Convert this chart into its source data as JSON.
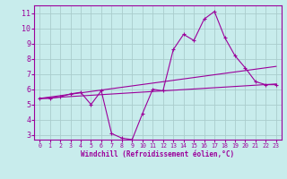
{
  "title": "",
  "xlabel": "Windchill (Refroidissement éolien,°C)",
  "ylabel": "",
  "bg_color": "#c8ecec",
  "line_color": "#9b009b",
  "grid_color": "#aacccc",
  "xlim": [
    -0.5,
    23.5
  ],
  "ylim": [
    2.7,
    11.5
  ],
  "yticks": [
    3,
    4,
    5,
    6,
    7,
    8,
    9,
    10,
    11
  ],
  "xticks": [
    0,
    1,
    2,
    3,
    4,
    5,
    6,
    7,
    8,
    9,
    10,
    11,
    12,
    13,
    14,
    15,
    16,
    17,
    18,
    19,
    20,
    21,
    22,
    23
  ],
  "series1_x": [
    0,
    1,
    2,
    3,
    4,
    5,
    6,
    7,
    8,
    9,
    10,
    11,
    12,
    13,
    14,
    15,
    16,
    17,
    18,
    19,
    20,
    21,
    22,
    23
  ],
  "series1_y": [
    5.4,
    5.4,
    5.5,
    5.7,
    5.8,
    5.0,
    5.9,
    3.1,
    2.8,
    2.7,
    4.4,
    6.0,
    5.9,
    8.6,
    9.6,
    9.2,
    10.6,
    11.1,
    9.4,
    8.2,
    7.4,
    6.5,
    6.3,
    6.3
  ],
  "series2_x": [
    0,
    23
  ],
  "series2_y": [
    5.4,
    6.35
  ],
  "series3_x": [
    0,
    23
  ],
  "series3_y": [
    5.4,
    7.5
  ],
  "marker_x": [
    0,
    1,
    2,
    3,
    4,
    5,
    6,
    7,
    8,
    9,
    10,
    11,
    12,
    13,
    14,
    15,
    16,
    17,
    18,
    19,
    20,
    21,
    22,
    23
  ],
  "marker_y": [
    5.4,
    5.4,
    5.5,
    5.7,
    5.8,
    5.0,
    5.9,
    3.1,
    2.8,
    2.7,
    4.4,
    6.0,
    5.9,
    8.6,
    9.6,
    9.2,
    10.6,
    11.1,
    9.4,
    8.2,
    7.4,
    6.5,
    6.3,
    6.3
  ]
}
